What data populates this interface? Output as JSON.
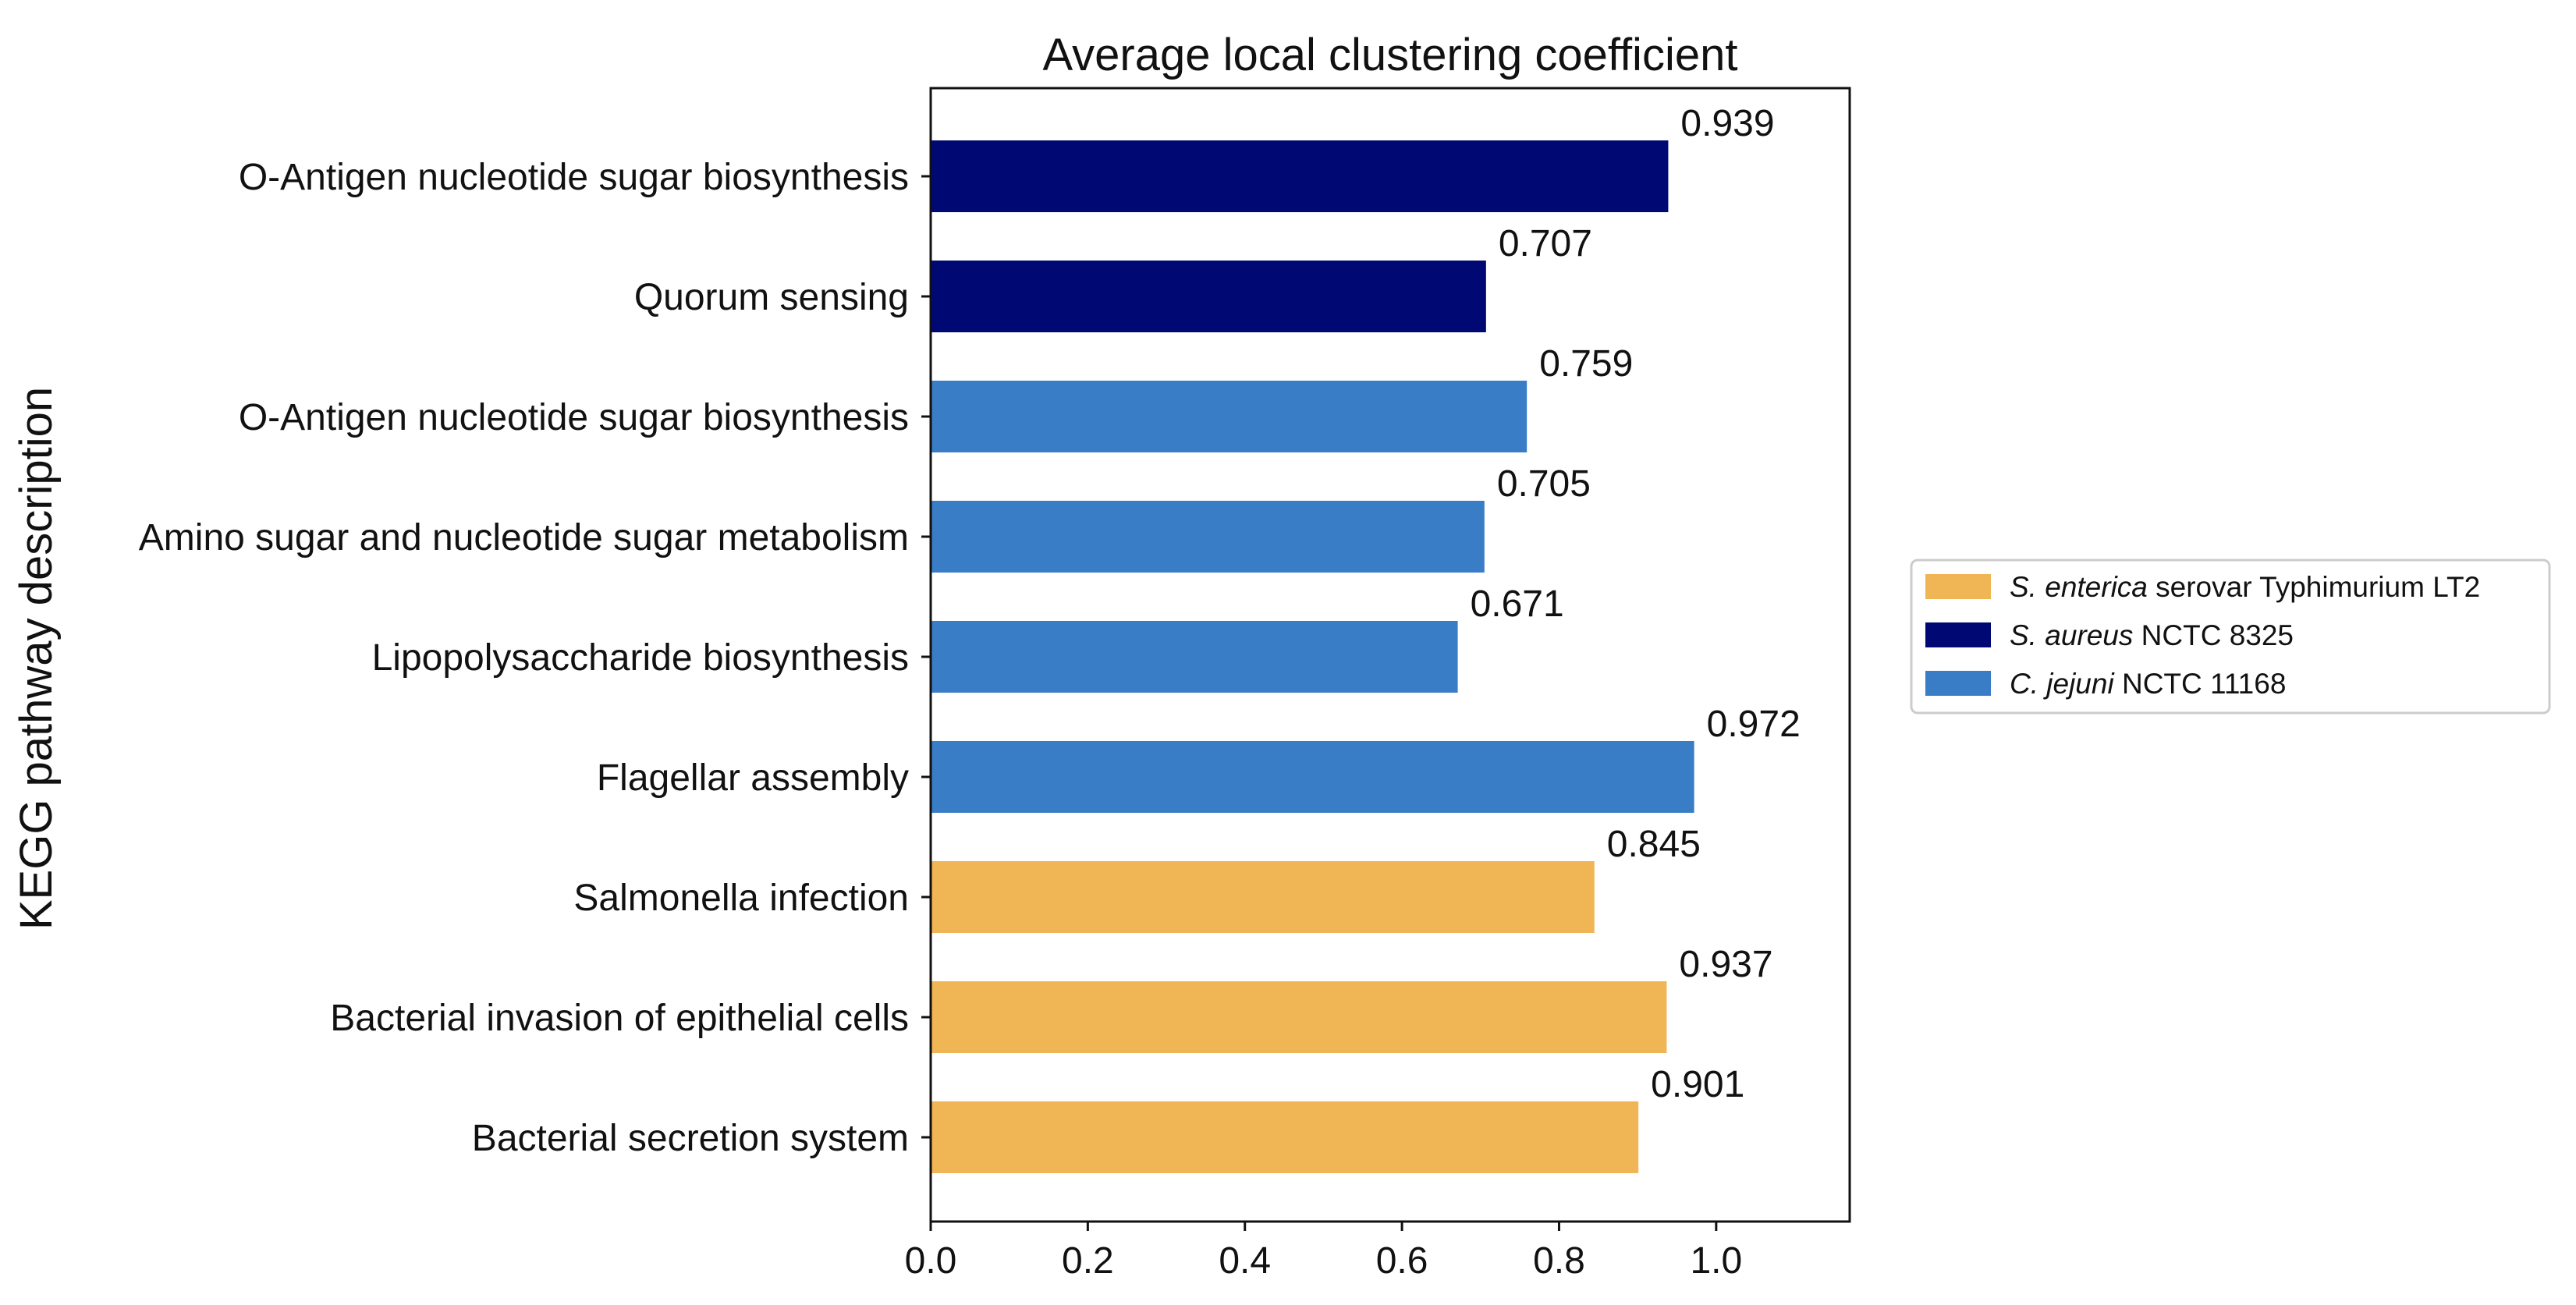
{
  "chart_data": {
    "type": "bar",
    "orientation": "horizontal",
    "title": "Average local clustering coefficient",
    "xlabel": "",
    "ylabel": "KEGG pathway description",
    "xlim": [
      0,
      1.17
    ],
    "xticks": [
      0.0,
      0.2,
      0.4,
      0.6,
      0.8,
      1.0
    ],
    "xtick_labels": [
      "0.0",
      "0.2",
      "0.4",
      "0.6",
      "0.8",
      "1.0"
    ],
    "categories": [
      "O-Antigen nucleotide sugar biosynthesis",
      "Quorum sensing",
      "O-Antigen nucleotide sugar biosynthesis",
      "Amino sugar and nucleotide sugar metabolism",
      "Lipopolysaccharide biosynthesis",
      "Flagellar assembly",
      "Salmonella infection",
      "Bacterial invasion of epithelial cells",
      "Bacterial secretion system"
    ],
    "values": [
      0.939,
      0.707,
      0.759,
      0.705,
      0.671,
      0.972,
      0.845,
      0.937,
      0.901
    ],
    "value_labels": [
      "0.939",
      "0.707",
      "0.759",
      "0.705",
      "0.671",
      "0.972",
      "0.845",
      "0.937",
      "0.901"
    ],
    "bar_series": [
      1,
      1,
      2,
      2,
      2,
      2,
      0,
      0,
      0
    ],
    "series": [
      {
        "name": "S. enterica serovar Typhimurium LT2",
        "italic": "S. enterica",
        "rest": " serovar Typhimurium LT2",
        "color": "#F0B555"
      },
      {
        "name": "S. aureus NCTC 8325",
        "italic": "S. aureus",
        "rest": " NCTC 8325",
        "color": "#000873"
      },
      {
        "name": "C. jejuni NCTC 11168",
        "italic": "C. jejuni",
        "rest": " NCTC 11168",
        "color": "#3A7DC7"
      }
    ],
    "legend_position": "center-right",
    "grid": false
  }
}
